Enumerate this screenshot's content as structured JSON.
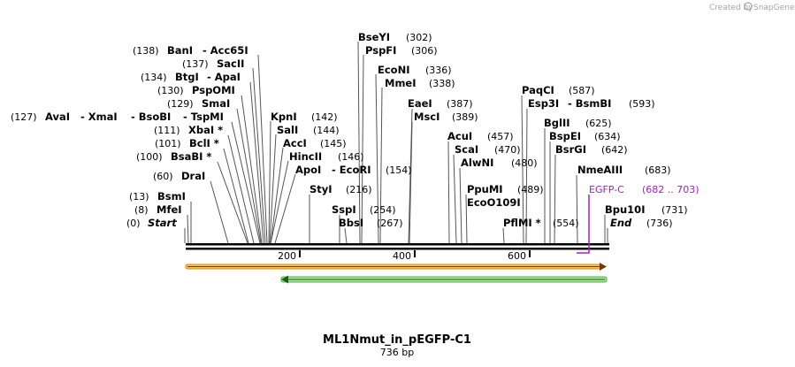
{
  "credit": {
    "prefix": "Created by",
    "brand": "SnapGene"
  },
  "map": {
    "title": "ML1Nmut_in_pEGFP-C1",
    "length_label": "736 bp",
    "ticks": [
      "200",
      "400",
      "600"
    ],
    "sites": [
      {
        "name": "BseYI",
        "pos": "(302)"
      },
      {
        "name": "PspFI",
        "pos": "(306)"
      },
      {
        "name": "EcoNI",
        "pos": "(336)"
      },
      {
        "name": "MmeI",
        "pos": "(338)"
      },
      {
        "name": "EaeI",
        "pos": "(387)"
      },
      {
        "name": "MscI",
        "pos": "(389)"
      },
      {
        "name": "AcuI",
        "pos": "(457)"
      },
      {
        "name": "ScaI",
        "pos": "(470)"
      },
      {
        "name": "AlwNI",
        "pos": "(480)"
      },
      {
        "name": "PpuMI",
        "pos": "(489)"
      },
      {
        "name": "EcoO109I",
        "pos": ""
      },
      {
        "name": "PflMI *",
        "pos": "(554)"
      },
      {
        "name": "PaqCI",
        "pos": "(587)"
      },
      {
        "name": "Esp3I",
        "pos": "- BsmBI",
        "extra": "(593)"
      },
      {
        "name": "BglII",
        "pos": "(625)"
      },
      {
        "name": "BspEI",
        "pos": "(634)"
      },
      {
        "name": "BsrGI",
        "pos": "(642)"
      },
      {
        "name": "NmeAIII",
        "pos": "(683)"
      },
      {
        "name": "Bpu10I",
        "pos": "(731)"
      },
      {
        "name": "End",
        "pos": "(736)"
      },
      {
        "name": "KpnI",
        "pos": "(142)"
      },
      {
        "name": "SalI",
        "pos": "(144)"
      },
      {
        "name": "AccI",
        "pos": "(145)"
      },
      {
        "name": "HincII",
        "pos": "(146)"
      },
      {
        "name": "ApoI",
        "pos": "- EcoRI",
        "extra": "(154)"
      },
      {
        "name": "StyI",
        "pos": "(216)"
      },
      {
        "name": "SspI",
        "pos": "(254)"
      },
      {
        "name": "BbsI",
        "pos": "(267)"
      }
    ],
    "left_sites": [
      {
        "pos": "(138)",
        "name": "BanI",
        "extra": "- Acc65I"
      },
      {
        "pos": "(137)",
        "name": "SacII"
      },
      {
        "pos": "(134)",
        "name": "BtgI",
        "extra": "- ApaI"
      },
      {
        "pos": "(130)",
        "name": "PspOMI"
      },
      {
        "pos": "(129)",
        "name": "SmaI"
      },
      {
        "pos": "(127)",
        "name": "AvaI",
        "extra": "- XmaI",
        "extra2": "- BsoBI",
        "extra3": "- TspMI"
      },
      {
        "pos": "(111)",
        "name": "XbaI *"
      },
      {
        "pos": "(101)",
        "name": "BclI *"
      },
      {
        "pos": "(100)",
        "name": "BsaBI *"
      },
      {
        "pos": "(60)",
        "name": "DraI"
      },
      {
        "pos": "(13)",
        "name": "BsmI"
      },
      {
        "pos": "(8)",
        "name": "MfeI"
      },
      {
        "pos": "(0)",
        "name": "Start"
      }
    ],
    "feature": {
      "name": "EGFP-C",
      "range": "(682 .. 703)",
      "color": "#a020c0"
    },
    "bar_colors": {
      "orange": "#f5a623",
      "green": "#3cb043"
    }
  }
}
